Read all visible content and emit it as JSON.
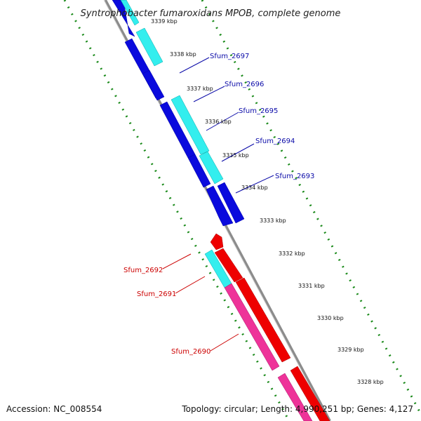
{
  "title": "Syntrophobacter fumaroxidans MPOB, complete genome",
  "footer": {
    "accession": "Accession: NC_008554",
    "topology": "Topology: circular; Length: 4,990,251 bp; Genes: 4,127"
  },
  "ticks": [
    "3339 kbp",
    "3338 kbp",
    "3337 kbp",
    "3336 kbp",
    "3335 kbp",
    "3334 kbp",
    "3333 kbp",
    "3332 kbp",
    "3331 kbp",
    "3330 kbp",
    "3329 kbp",
    "3328 kbp"
  ],
  "gene_labels": [
    {
      "name": "Sfum_2697",
      "color": "#0a0aa8"
    },
    {
      "name": "Sfum_2696",
      "color": "#0a0aa8"
    },
    {
      "name": "Sfum_2695",
      "color": "#0a0aa8"
    },
    {
      "name": "Sfum_2694",
      "color": "#0a0aa8"
    },
    {
      "name": "Sfum_2693",
      "color": "#0a0aa8"
    },
    {
      "name": "Sfum_2692",
      "color": "#cc0000"
    },
    {
      "name": "Sfum_2691",
      "color": "#cc0000"
    },
    {
      "name": "Sfum_2690",
      "color": "#cc0000"
    }
  ],
  "colors": {
    "backbone": "#8c8c8c",
    "tick_green": "#1a8a1a",
    "cds_blue": "#0a0add",
    "cds_cyan": "#33eeee",
    "cds_red": "#ee0000",
    "cds_pink": "#ee3399"
  }
}
